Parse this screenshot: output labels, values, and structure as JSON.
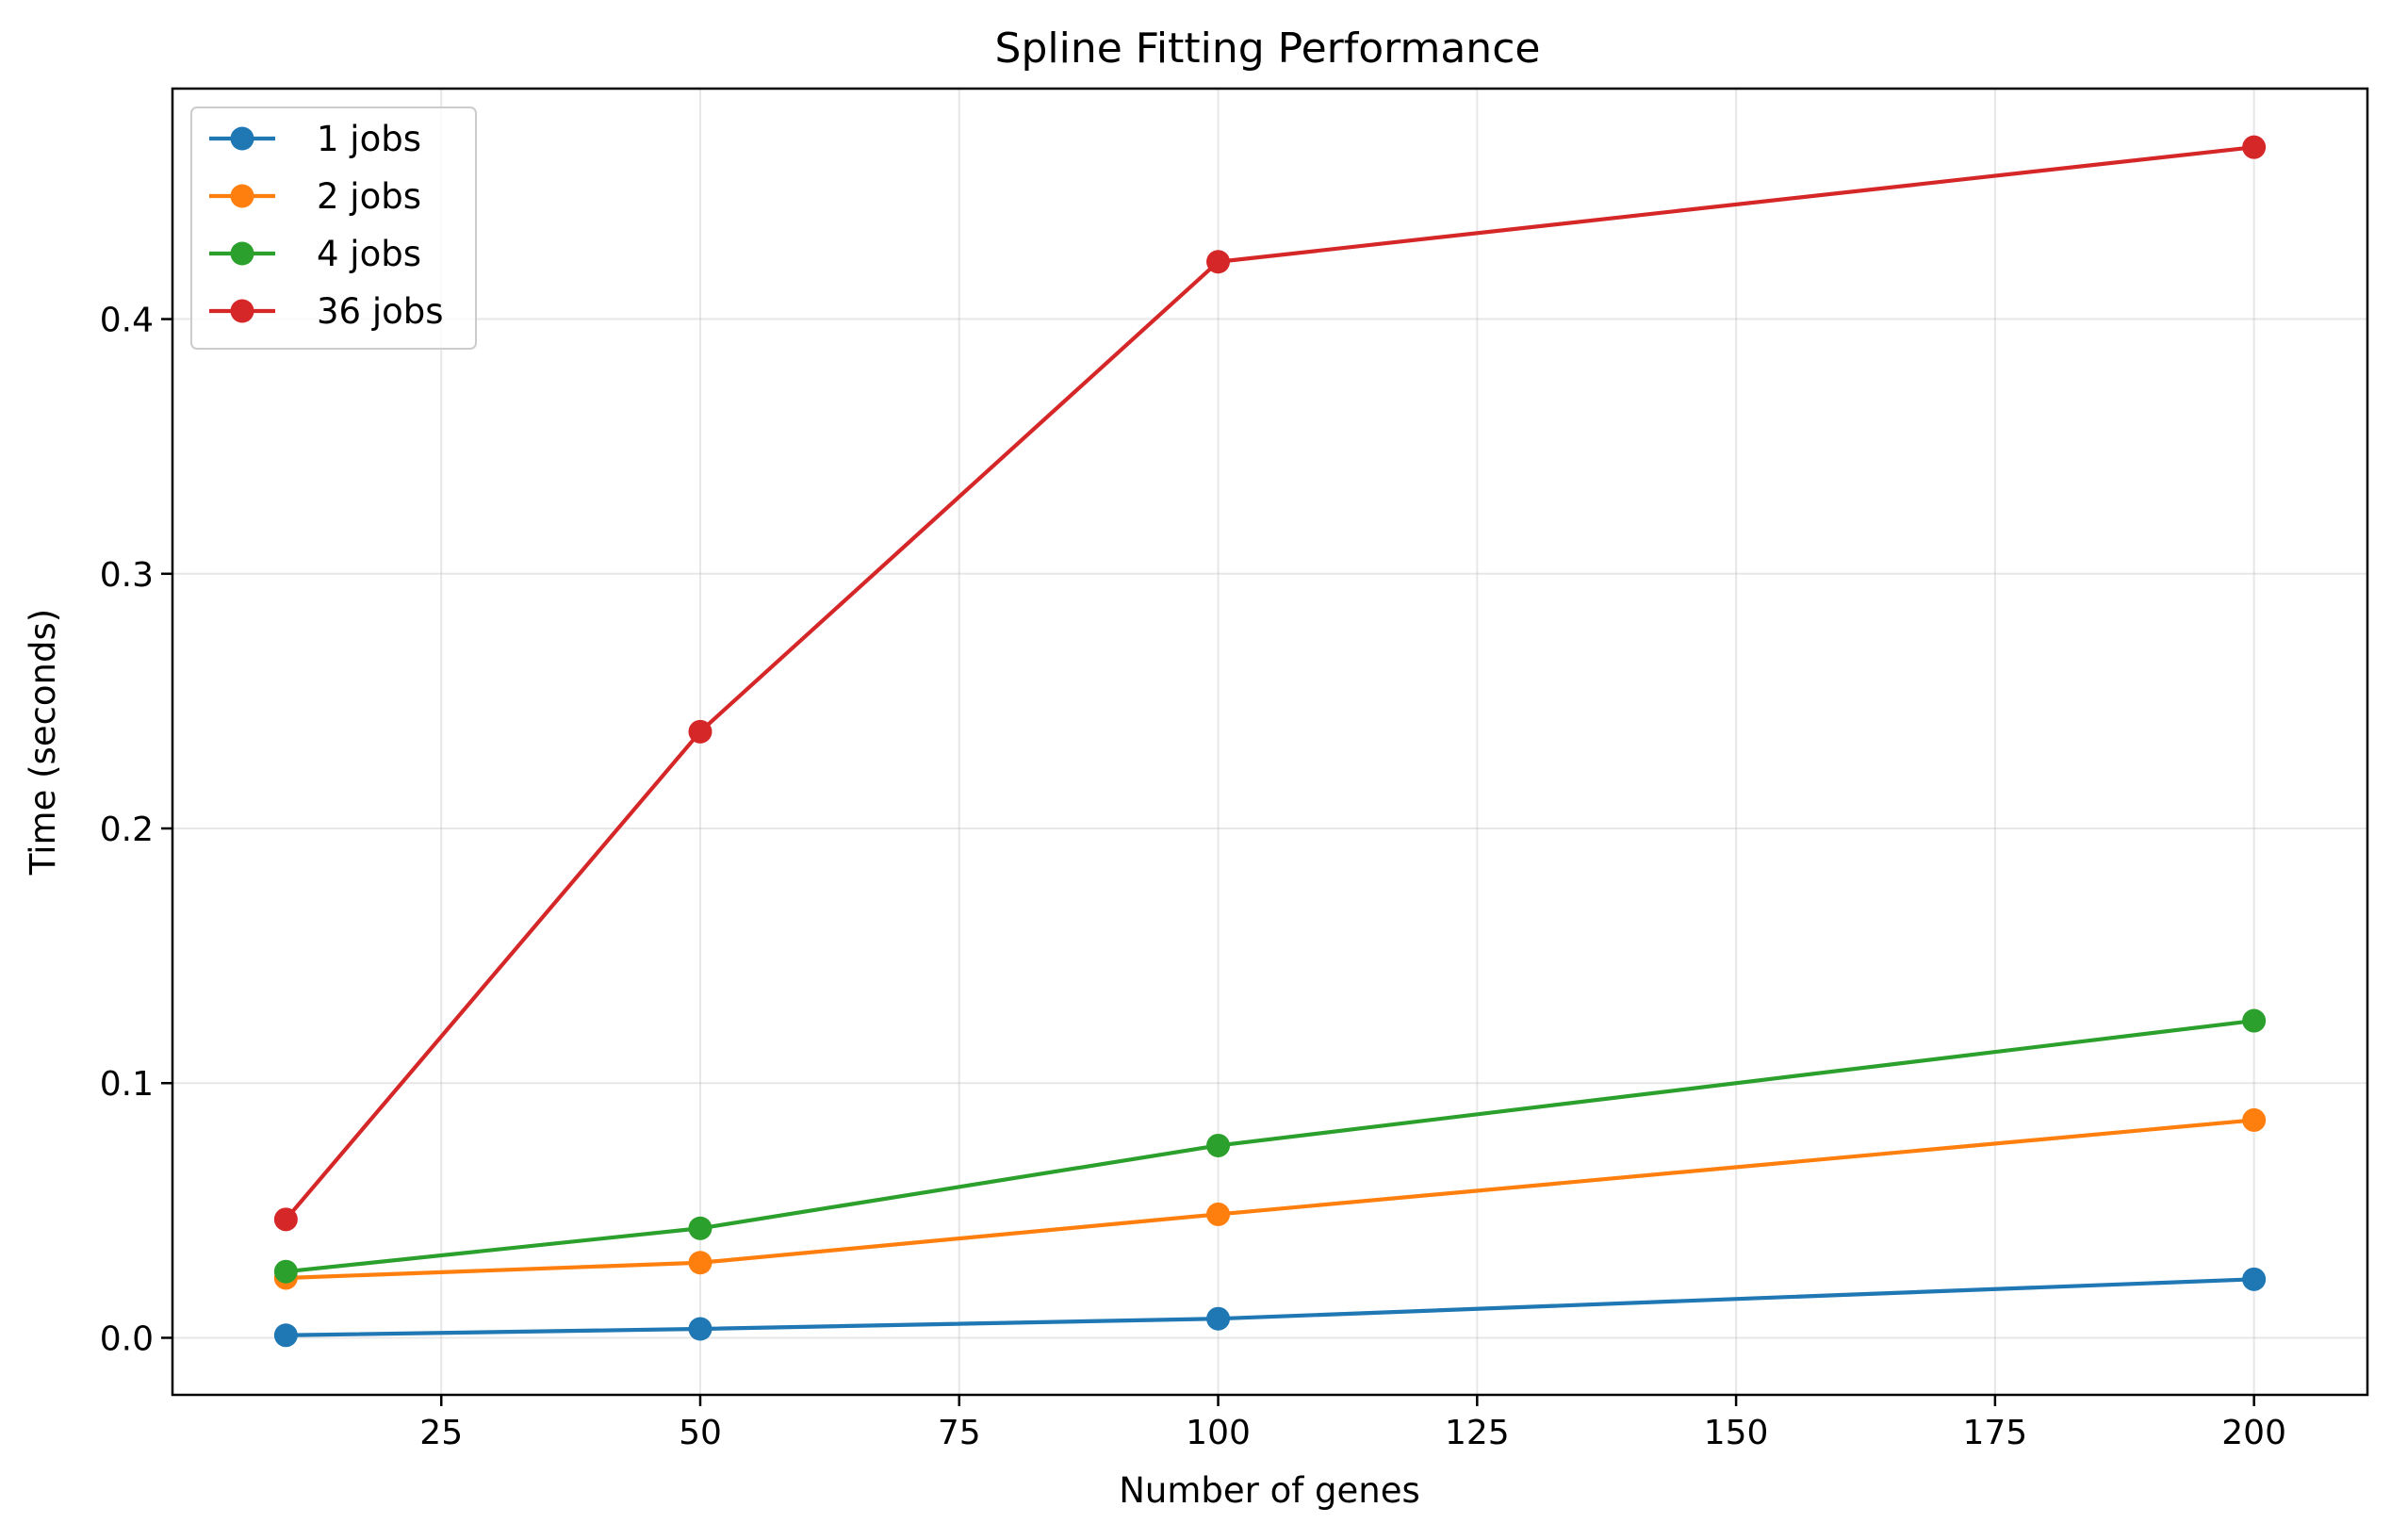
{
  "chart_data": {
    "type": "line",
    "title": "Spline Fitting Performance",
    "xlabel": "Number of genes",
    "ylabel": "Time (seconds)",
    "x": [
      10,
      50,
      100,
      200
    ],
    "xlim": [
      -0.95,
      210.95
    ],
    "ylim": [
      -0.0224,
      0.4905
    ],
    "xticks": [
      25,
      50,
      75,
      100,
      125,
      150,
      175,
      200
    ],
    "yticks": [
      0.0,
      0.1,
      0.2,
      0.3,
      0.4
    ],
    "xtick_labels": [
      "25",
      "50",
      "75",
      "100",
      "125",
      "150",
      "175",
      "200"
    ],
    "ytick_labels": [
      "0.0",
      "0.1",
      "0.2",
      "0.3",
      "0.4"
    ],
    "grid": true,
    "legend_position": "top-left",
    "series": [
      {
        "name": "1 jobs",
        "color": "#1f77b4",
        "values": [
          0.001,
          0.0035,
          0.0075,
          0.023
        ]
      },
      {
        "name": "2 jobs",
        "color": "#ff7f0e",
        "values": [
          0.0235,
          0.0295,
          0.0485,
          0.0855
        ]
      },
      {
        "name": "4 jobs",
        "color": "#2ca02c",
        "values": [
          0.026,
          0.043,
          0.0755,
          0.1245
        ]
      },
      {
        "name": "36 jobs",
        "color": "#d62728",
        "values": [
          0.0465,
          0.238,
          0.4225,
          0.4675
        ]
      }
    ]
  }
}
